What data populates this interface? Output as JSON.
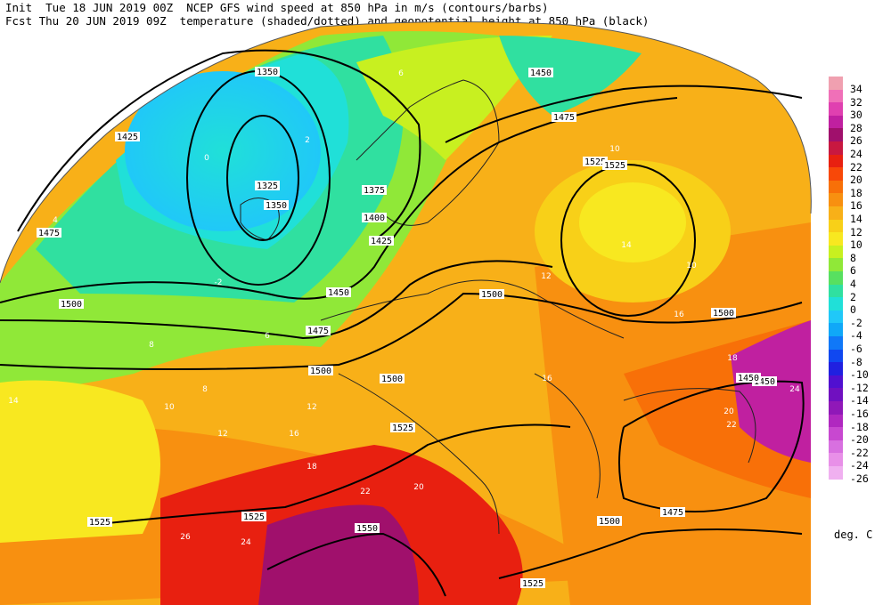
{
  "header": {
    "line1": "Init  Tue 18 JUN 2019 00Z  NCEP GFS wind speed at 850 hPa in m/s (contours/barbs)",
    "line2": "Fcst Thu 20 JUN 2019 09Z  temperature (shaded/dotted) and geopotential height at 850 hPa (black)"
  },
  "colorbar": {
    "labels": [
      "34",
      "32",
      "30",
      "28",
      "26",
      "24",
      "22",
      "20",
      "18",
      "16",
      "14",
      "12",
      "10",
      "8",
      "6",
      "4",
      "2",
      "0",
      "-2",
      "-4",
      "-6",
      "-8",
      "-10",
      "-12",
      "-14",
      "-16",
      "-18",
      "-20",
      "-22",
      "-24",
      "-26"
    ],
    "colors": [
      "#f0a0b0",
      "#f070b8",
      "#e040b0",
      "#c020a0",
      "#a0106c",
      "#c81840",
      "#e82010",
      "#f84808",
      "#f87008",
      "#f89010",
      "#f8b018",
      "#f8d018",
      "#f8e820",
      "#c8f020",
      "#90e838",
      "#58e060",
      "#30e0a0",
      "#20e0d8",
      "#20c8f8",
      "#10a8f8",
      "#1078f8",
      "#1048f0",
      "#2020e0",
      "#5010d0",
      "#7010c0",
      "#9018b8",
      "#b028c0",
      "#c848d0",
      "#d870e0",
      "#e890e8",
      "#f0b0f0"
    ],
    "unit": "deg. C"
  },
  "map": {
    "height_labels": [
      {
        "text": "1350"
      },
      {
        "text": "1425"
      },
      {
        "text": "1475"
      },
      {
        "text": "1500"
      },
      {
        "text": "1325"
      },
      {
        "text": "1350"
      },
      {
        "text": "1375"
      },
      {
        "text": "1400"
      },
      {
        "text": "1425"
      },
      {
        "text": "1450"
      },
      {
        "text": "1475"
      },
      {
        "text": "1500"
      },
      {
        "text": "1500"
      },
      {
        "text": "1525"
      },
      {
        "text": "1525"
      },
      {
        "text": "1525"
      },
      {
        "text": "1550"
      },
      {
        "text": "1525"
      },
      {
        "text": "1500"
      },
      {
        "text": "1475"
      },
      {
        "text": "1450"
      },
      {
        "text": "1450"
      },
      {
        "text": "1475"
      },
      {
        "text": "1525"
      },
      {
        "text": "1500"
      },
      {
        "text": "1500"
      },
      {
        "text": "1450"
      },
      {
        "text": "1525"
      }
    ],
    "temp_labels": [
      {
        "text": "0"
      },
      {
        "text": "2"
      },
      {
        "text": "4"
      },
      {
        "text": "6"
      },
      {
        "text": "8"
      },
      {
        "text": "10"
      },
      {
        "text": "12"
      },
      {
        "text": "14"
      },
      {
        "text": "16"
      },
      {
        "text": "18"
      },
      {
        "text": "20"
      },
      {
        "text": "22"
      },
      {
        "text": "24"
      },
      {
        "text": "26"
      },
      {
        "text": "-2"
      },
      {
        "text": "10"
      },
      {
        "text": "12"
      },
      {
        "text": "14"
      },
      {
        "text": "16"
      },
      {
        "text": "18"
      },
      {
        "text": "16"
      },
      {
        "text": "20"
      },
      {
        "text": "22"
      },
      {
        "text": "24"
      },
      {
        "text": "6"
      },
      {
        "text": "8"
      },
      {
        "text": "12"
      },
      {
        "text": "10"
      }
    ]
  }
}
